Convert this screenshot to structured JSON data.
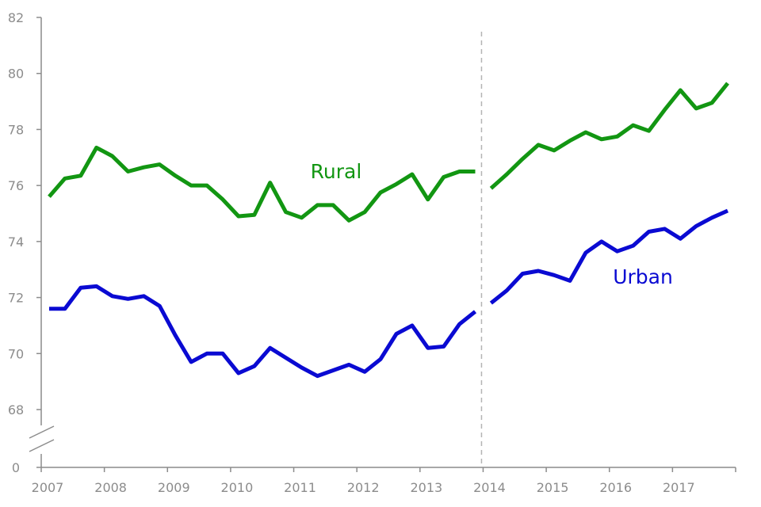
{
  "chart_data": {
    "type": "line",
    "title": "",
    "xlabel": "",
    "ylabel": "",
    "ylim": [
      67,
      82
    ],
    "axis_break": true,
    "y_ticks": [
      68,
      70,
      72,
      74,
      76,
      78,
      80,
      82
    ],
    "y_bottom_label": "0",
    "x_ticks": [
      "2007",
      "2008",
      "2009",
      "2010",
      "2011",
      "2012",
      "2013",
      "2014",
      "2015",
      "2016",
      "2017"
    ],
    "grid": false,
    "legend": "inline labels",
    "divider_at": "2014",
    "series": [
      {
        "name": "Rural",
        "color": "#129612",
        "segments": [
          [
            [
              2007.125,
              75.6
            ],
            [
              2007.375,
              76.25
            ],
            [
              2007.625,
              76.35
            ],
            [
              2007.875,
              77.35
            ],
            [
              2008.125,
              77.05
            ],
            [
              2008.375,
              76.5
            ],
            [
              2008.625,
              76.65
            ],
            [
              2008.875,
              76.75
            ],
            [
              2009.125,
              76.35
            ],
            [
              2009.375,
              76.0
            ],
            [
              2009.625,
              76.0
            ],
            [
              2009.875,
              75.5
            ],
            [
              2010.125,
              74.9
            ],
            [
              2010.375,
              74.95
            ],
            [
              2010.625,
              76.1
            ],
            [
              2010.875,
              75.05
            ],
            [
              2011.125,
              74.85
            ],
            [
              2011.375,
              75.3
            ],
            [
              2011.625,
              75.3
            ],
            [
              2011.875,
              74.75
            ],
            [
              2012.125,
              75.05
            ],
            [
              2012.375,
              75.75
            ],
            [
              2012.625,
              76.05
            ],
            [
              2012.875,
              76.4
            ],
            [
              2013.125,
              75.5
            ],
            [
              2013.375,
              76.3
            ],
            [
              2013.625,
              76.5
            ],
            [
              2013.875,
              76.5
            ]
          ],
          [
            [
              2014.125,
              75.9
            ],
            [
              2014.375,
              76.4
            ],
            [
              2014.625,
              76.95
            ],
            [
              2014.875,
              77.45
            ],
            [
              2015.125,
              77.25
            ],
            [
              2015.375,
              77.6
            ],
            [
              2015.625,
              77.9
            ],
            [
              2015.875,
              77.65
            ],
            [
              2016.125,
              77.75
            ],
            [
              2016.375,
              78.15
            ],
            [
              2016.625,
              77.95
            ],
            [
              2016.875,
              78.7
            ],
            [
              2017.125,
              79.4
            ],
            [
              2017.375,
              78.75
            ],
            [
              2017.625,
              78.95
            ],
            [
              2017.875,
              79.65
            ]
          ]
        ]
      },
      {
        "name": "Urban",
        "color": "#0a0ad2",
        "segments": [
          [
            [
              2007.125,
              71.6
            ],
            [
              2007.375,
              71.6
            ],
            [
              2007.625,
              72.35
            ],
            [
              2007.875,
              72.4
            ],
            [
              2008.125,
              72.05
            ],
            [
              2008.375,
              71.95
            ],
            [
              2008.625,
              72.05
            ],
            [
              2008.875,
              71.7
            ],
            [
              2009.125,
              70.65
            ],
            [
              2009.375,
              69.7
            ],
            [
              2009.625,
              70.0
            ],
            [
              2009.875,
              70.0
            ],
            [
              2010.125,
              69.3
            ],
            [
              2010.375,
              69.55
            ],
            [
              2010.625,
              70.2
            ],
            [
              2010.875,
              69.85
            ],
            [
              2011.125,
              69.5
            ],
            [
              2011.375,
              69.2
            ],
            [
              2011.625,
              69.4
            ],
            [
              2011.875,
              69.6
            ],
            [
              2012.125,
              69.35
            ],
            [
              2012.375,
              69.8
            ],
            [
              2012.625,
              70.7
            ],
            [
              2012.875,
              71.0
            ],
            [
              2013.125,
              70.2
            ],
            [
              2013.375,
              70.25
            ],
            [
              2013.625,
              71.05
            ],
            [
              2013.875,
              71.5
            ]
          ],
          [
            [
              2014.125,
              71.8
            ],
            [
              2014.375,
              72.25
            ],
            [
              2014.625,
              72.85
            ],
            [
              2014.875,
              72.95
            ],
            [
              2015.125,
              72.8
            ],
            [
              2015.375,
              72.6
            ],
            [
              2015.625,
              73.6
            ],
            [
              2015.875,
              74.0
            ],
            [
              2016.125,
              73.65
            ],
            [
              2016.375,
              73.85
            ],
            [
              2016.625,
              74.35
            ],
            [
              2016.875,
              74.45
            ],
            [
              2017.125,
              74.1
            ],
            [
              2017.375,
              74.55
            ],
            [
              2017.625,
              74.85
            ],
            [
              2017.875,
              75.1
            ]
          ]
        ]
      }
    ]
  }
}
